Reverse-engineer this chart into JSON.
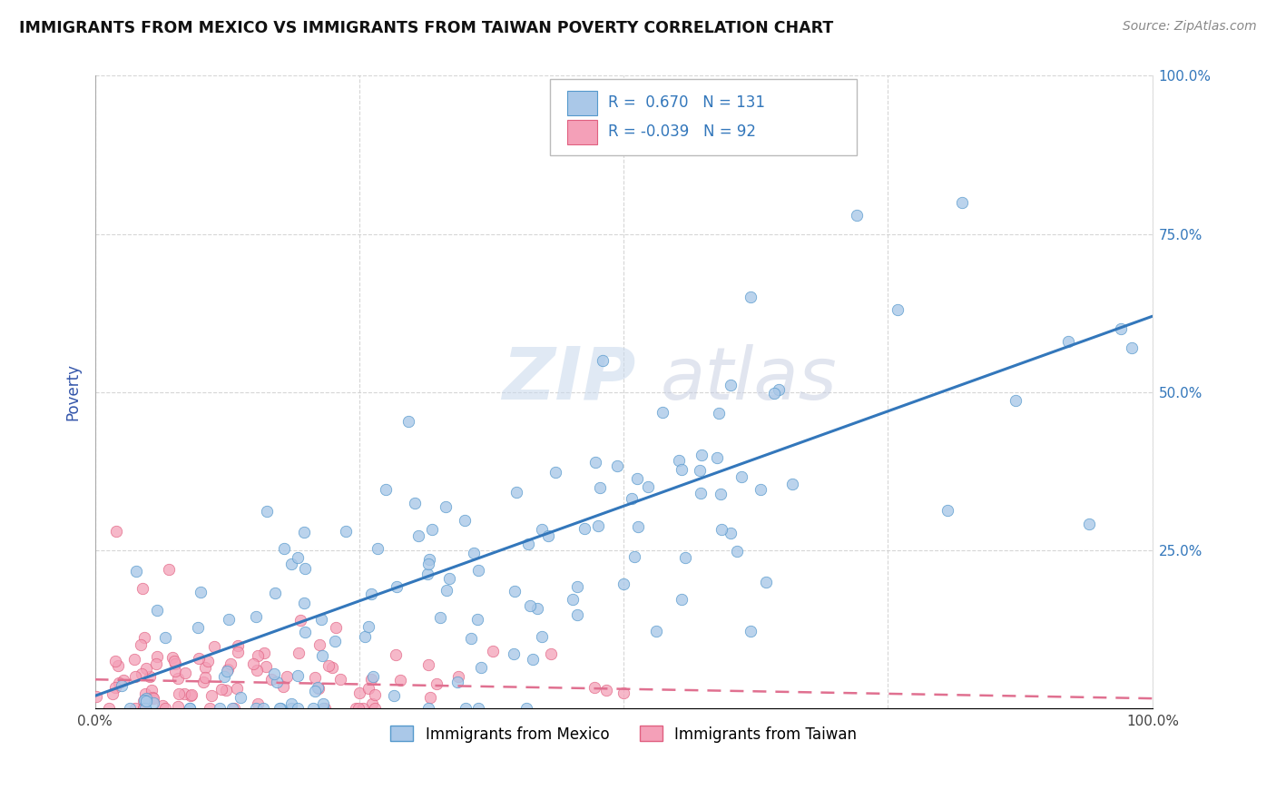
{
  "title": "IMMIGRANTS FROM MEXICO VS IMMIGRANTS FROM TAIWAN POVERTY CORRELATION CHART",
  "source": "Source: ZipAtlas.com",
  "ylabel": "Poverty",
  "legend_label1": "Immigrants from Mexico",
  "legend_label2": "Immigrants from Taiwan",
  "r1": 0.67,
  "n1": 131,
  "r2": -0.039,
  "n2": 92,
  "color_mexico_fill": "#aac8e8",
  "color_mexico_edge": "#5599cc",
  "color_taiwan_fill": "#f4a0b8",
  "color_taiwan_edge": "#e06080",
  "color_mexico_line": "#3377bb",
  "color_taiwan_line": "#e07090",
  "watermark_color": "#d0dff0",
  "grid_color": "#cccccc",
  "right_tick_color": "#3377bb",
  "title_color": "#111111",
  "source_color": "#888888",
  "ylabel_color": "#3355aa"
}
